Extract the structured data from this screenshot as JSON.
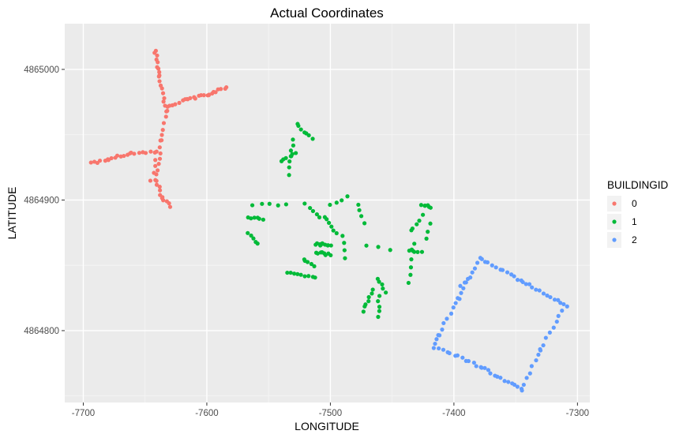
{
  "chart_data": {
    "type": "scatter",
    "title": "Actual Coordinates",
    "xlabel": "LONGITUDE",
    "ylabel": "LATITUDE",
    "xlim": [
      -7715,
      -7290
    ],
    "ylim": [
      4864745,
      4865035
    ],
    "xticks": [
      -7700,
      -7600,
      -7500,
      -7400,
      -7300
    ],
    "xtick_labels": [
      "-7700",
      "-7600",
      "-7500",
      "-7400",
      "-7300"
    ],
    "yticks": [
      4864800,
      4864900,
      4865000
    ],
    "ytick_labels": [
      "4864800",
      "4864900",
      "4865000"
    ],
    "grid": true,
    "legend": {
      "title": "BUILDINGID",
      "position": "right",
      "entries": [
        {
          "label": "0",
          "color": "#F8766D"
        },
        {
          "label": "1",
          "color": "#00BA38"
        },
        {
          "label": "2",
          "color": "#619CFF"
        }
      ]
    },
    "series": [
      {
        "name": "0",
        "color": "#F8766D",
        "segments": [
          {
            "x0": -7642,
            "y0": 4865015,
            "x1": -7638,
            "y1": 4864995,
            "n": 9
          },
          {
            "x0": -7638,
            "y0": 4864995,
            "x1": -7633,
            "y1": 4864968,
            "n": 9
          },
          {
            "x0": -7633,
            "y0": 4864968,
            "x1": -7637,
            "y1": 4864945,
            "n": 6
          },
          {
            "x0": -7637,
            "y0": 4864945,
            "x1": -7641,
            "y1": 4864915,
            "n": 8
          },
          {
            "x0": -7641,
            "y0": 4864915,
            "x1": -7636,
            "y1": 4864902,
            "n": 6
          },
          {
            "x0": -7636,
            "y0": 4864902,
            "x1": -7630,
            "y1": 4864895,
            "n": 5
          },
          {
            "x0": -7632,
            "y0": 4864972,
            "x1": -7615,
            "y1": 4864977,
            "n": 8
          },
          {
            "x0": -7615,
            "y0": 4864977,
            "x1": -7598,
            "y1": 4864981,
            "n": 9
          },
          {
            "x0": -7598,
            "y0": 4864981,
            "x1": -7584,
            "y1": 4864986,
            "n": 8
          },
          {
            "x0": -7642,
            "y0": 4864937,
            "x1": -7662,
            "y1": 4864936,
            "n": 7
          },
          {
            "x0": -7662,
            "y0": 4864936,
            "x1": -7680,
            "y1": 4864931,
            "n": 8
          },
          {
            "x0": -7680,
            "y0": 4864931,
            "x1": -7694,
            "y1": 4864928,
            "n": 6
          },
          {
            "x0": -7640,
            "y0": 4864937,
            "x1": -7645,
            "y1": 4864915,
            "n": 5
          }
        ]
      },
      {
        "name": "1",
        "color": "#00BA38",
        "segments": [
          {
            "x0": -7566,
            "y0": 4864887,
            "x1": -7555,
            "y1": 4864885,
            "n": 6
          },
          {
            "x0": -7566,
            "y0": 4864874,
            "x1": -7558,
            "y1": 4864867,
            "n": 5
          },
          {
            "x0": -7563,
            "y0": 4864896,
            "x1": -7535,
            "y1": 4864897,
            "n": 5
          },
          {
            "x0": -7534,
            "y0": 4864920,
            "x1": -7530,
            "y1": 4864947,
            "n": 7
          },
          {
            "x0": -7527,
            "y0": 4864958,
            "x1": -7515,
            "y1": 4864947,
            "n": 7
          },
          {
            "x0": -7540,
            "y0": 4864930,
            "x1": -7528,
            "y1": 4864936,
            "n": 6
          },
          {
            "x0": -7520,
            "y0": 4864897,
            "x1": -7508,
            "y1": 4864886,
            "n": 5
          },
          {
            "x0": -7500,
            "y0": 4864897,
            "x1": -7486,
            "y1": 4864902,
            "n": 4
          },
          {
            "x0": -7478,
            "y0": 4864896,
            "x1": -7472,
            "y1": 4864883,
            "n": 4
          },
          {
            "x0": -7505,
            "y0": 4864887,
            "x1": -7495,
            "y1": 4864874,
            "n": 6
          },
          {
            "x0": -7512,
            "y0": 4864866,
            "x1": -7500,
            "y1": 4864866,
            "n": 10
          },
          {
            "x0": -7512,
            "y0": 4864860,
            "x1": -7500,
            "y1": 4864858,
            "n": 8
          },
          {
            "x0": -7522,
            "y0": 4864854,
            "x1": -7513,
            "y1": 4864850,
            "n": 5
          },
          {
            "x0": -7534,
            "y0": 4864844,
            "x1": -7512,
            "y1": 4864841,
            "n": 9
          },
          {
            "x0": -7490,
            "y0": 4864872,
            "x1": -7488,
            "y1": 4864856,
            "n": 4
          },
          {
            "x0": -7470,
            "y0": 4864865,
            "x1": -7452,
            "y1": 4864862,
            "n": 3
          },
          {
            "x0": -7461,
            "y0": 4864840,
            "x1": -7456,
            "y1": 4864829,
            "n": 5
          },
          {
            "x0": -7466,
            "y0": 4864831,
            "x1": -7474,
            "y1": 4864815,
            "n": 7
          },
          {
            "x0": -7461,
            "y0": 4864826,
            "x1": -7461,
            "y1": 4864811,
            "n": 5
          },
          {
            "x0": -7436,
            "y0": 4864837,
            "x1": -7432,
            "y1": 4864866,
            "n": 6
          },
          {
            "x0": -7437,
            "y0": 4864862,
            "x1": -7426,
            "y1": 4864860,
            "n": 5
          },
          {
            "x0": -7435,
            "y0": 4864876,
            "x1": -7426,
            "y1": 4864888,
            "n": 5
          },
          {
            "x0": -7426,
            "y0": 4864897,
            "x1": -7418,
            "y1": 4864894,
            "n": 6
          },
          {
            "x0": -7420,
            "y0": 4864882,
            "x1": -7423,
            "y1": 4864870,
            "n": 3
          }
        ]
      },
      {
        "name": "2",
        "color": "#619CFF",
        "segments": [
          {
            "x0": -7378,
            "y0": 4864855,
            "x1": -7345,
            "y1": 4864838,
            "n": 12
          },
          {
            "x0": -7345,
            "y0": 4864838,
            "x1": -7308,
            "y1": 4864818,
            "n": 14
          },
          {
            "x0": -7378,
            "y0": 4864855,
            "x1": -7396,
            "y1": 4864825,
            "n": 9
          },
          {
            "x0": -7396,
            "y0": 4864825,
            "x1": -7412,
            "y1": 4864797,
            "n": 8
          },
          {
            "x0": -7412,
            "y0": 4864797,
            "x1": -7417,
            "y1": 4864787,
            "n": 4
          },
          {
            "x0": -7412,
            "y0": 4864787,
            "x1": -7378,
            "y1": 4864772,
            "n": 12
          },
          {
            "x0": -7378,
            "y0": 4864772,
            "x1": -7345,
            "y1": 4864755,
            "n": 13
          },
          {
            "x0": -7345,
            "y0": 4864755,
            "x1": -7330,
            "y1": 4864785,
            "n": 8
          },
          {
            "x0": -7330,
            "y0": 4864785,
            "x1": -7312,
            "y1": 4864816,
            "n": 8
          },
          {
            "x0": -7395,
            "y0": 4864835,
            "x1": -7388,
            "y1": 4864840,
            "n": 3
          }
        ]
      }
    ]
  }
}
